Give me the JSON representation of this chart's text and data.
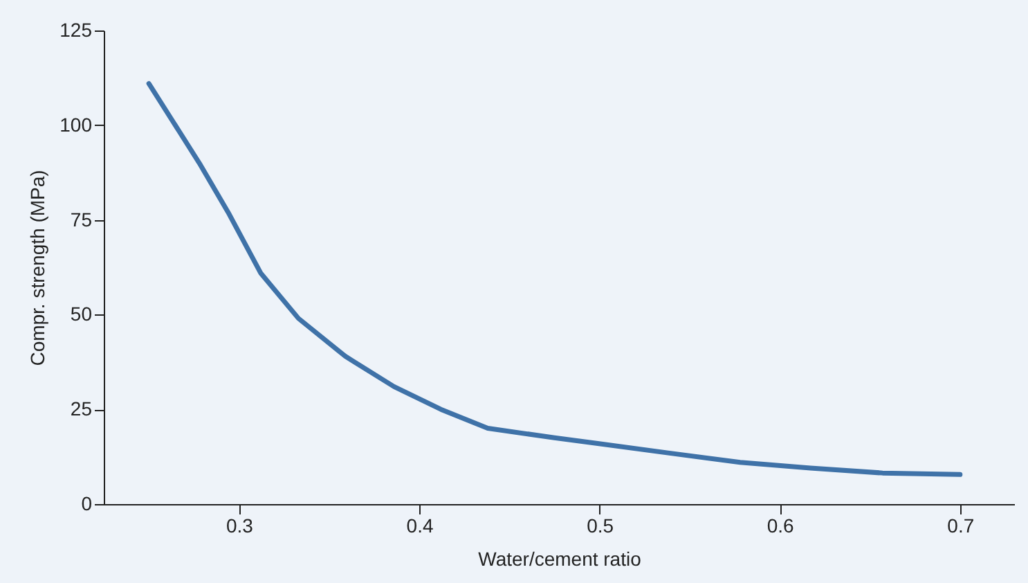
{
  "chart_data": {
    "type": "line",
    "xlabel": "Water/cement ratio",
    "ylabel": "Compr. strength (MPa)",
    "x": [
      0.25,
      0.278,
      0.294,
      0.312,
      0.333,
      0.359,
      0.386,
      0.412,
      0.438,
      0.475,
      0.499,
      0.538,
      0.578,
      0.617,
      0.657,
      0.7
    ],
    "series": [
      {
        "color": "#3f72a8",
        "values": [
          111,
          90,
          77,
          61,
          49,
          39,
          31,
          25,
          20,
          17.5,
          16,
          13.5,
          11,
          9.5,
          8.2,
          7.8
        ]
      }
    ],
    "xlim": [
      0.225,
      0.73
    ],
    "xticks": [
      0.3,
      0.4,
      0.5,
      0.6,
      0.7
    ],
    "ylim": [
      0,
      125
    ],
    "yticks": [
      0,
      25,
      50,
      75,
      100,
      125
    ],
    "grid": false,
    "marker": "none",
    "line_style": "solid"
  }
}
